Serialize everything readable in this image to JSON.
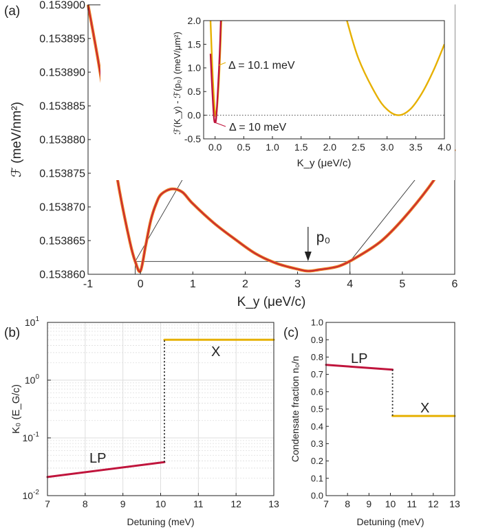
{
  "colors": {
    "lp": "#c0143c",
    "x": "#e6b000",
    "orange": "#e8761e",
    "axis": "#222222",
    "grid": "#dddddd"
  },
  "panel_labels": {
    "a": "(a)",
    "b": "(b)",
    "c": "(c)"
  },
  "chart_data": [
    {
      "id": "a-main",
      "type": "line",
      "xlabel": "K_y (μeV/c)",
      "ylabel": "ℱ (meV/nm²)",
      "xlim": [
        -1,
        6
      ],
      "ylim": [
        0.153858,
        0.1539
      ],
      "xticks": [
        "-1",
        "0",
        "1",
        "2",
        "3",
        "4",
        "5",
        "6"
      ],
      "yticks": [
        "0.153860",
        "0.153865",
        "0.153870",
        "0.153875",
        "0.153880",
        "0.153885",
        "0.153890",
        "0.153895",
        "0.153900"
      ],
      "annotation": "p₀",
      "annotation_x": 3.2,
      "box": {
        "x": [
          -0.1,
          4.0
        ],
        "y": [
          0.1538585,
          0.15386
        ]
      },
      "series": [
        {
          "x": [
            -1,
            -0.8,
            -0.6,
            -0.4,
            -0.2,
            -0.1,
            0,
            0.1,
            0.2,
            0.3,
            0.4,
            0.6,
            0.8,
            1.0,
            1.4,
            1.8,
            2.2,
            2.6,
            3.0,
            3.2,
            3.4,
            3.8,
            4.2,
            4.6,
            5.0,
            5.5,
            6.0
          ],
          "y": [
            0.1539,
            0.153891,
            0.153881,
            0.153871,
            0.153863,
            0.15386,
            0.1538585,
            0.1538625,
            0.1538665,
            0.153869,
            0.1538705,
            0.1538713,
            0.1538708,
            0.153869,
            0.153866,
            0.1538635,
            0.1538612,
            0.1538597,
            0.1538588,
            0.1538585,
            0.1538587,
            0.1538593,
            0.153861,
            0.1538632,
            0.1538665,
            0.1538715,
            0.1538775
          ]
        }
      ]
    },
    {
      "id": "a-inset",
      "type": "line",
      "xlabel": "K_y (μeV/c)",
      "ylabel": "ℱ(K_y) - ℱ(p₀) (meV/μm²)",
      "xlim": [
        -0.2,
        4.0
      ],
      "ylim": [
        -0.5,
        2.0
      ],
      "xticks": [
        "0.0",
        "0.5",
        "1.0",
        "1.5",
        "2.0",
        "2.5",
        "3.0",
        "3.5",
        "4.0"
      ],
      "yticks": [
        "-0.5",
        "0.0",
        "0.5",
        "1.0",
        "1.5",
        "2.0"
      ],
      "reference_line": 0,
      "series": [
        {
          "name": "Δ = 10.1 meV",
          "color_key": "x",
          "x": [
            -0.08,
            -0.05,
            -0.02,
            0,
            0.02,
            0.05,
            0.08,
            0.11,
            2.3,
            2.5,
            2.8,
            3.0,
            3.2,
            3.4,
            3.6,
            3.8,
            4.0
          ],
          "y": [
            2.0,
            1.05,
            0.35,
            0.05,
            0.0,
            0.4,
            1.05,
            2.0,
            2.0,
            1.2,
            0.45,
            0.12,
            0.0,
            0.12,
            0.45,
            0.92,
            1.5
          ]
        },
        {
          "name": "Δ = 10 meV",
          "color_key": "lp",
          "x": [
            -0.08,
            -0.05,
            -0.02,
            0,
            0.02,
            0.05,
            0.08,
            0.1
          ],
          "y": [
            1.3,
            0.55,
            -0.05,
            -0.15,
            -0.05,
            0.55,
            1.3,
            2.0
          ]
        }
      ],
      "labels": [
        "Δ = 10.1 meV",
        "Δ = 10 meV"
      ]
    },
    {
      "id": "b",
      "type": "line",
      "xlabel": "Detuning (meV)",
      "ylabel": "K₀ (E_G/c)",
      "xlim": [
        7,
        13
      ],
      "ylim": [
        0.01,
        10
      ],
      "scale_y": "log",
      "grid": true,
      "xticks": [
        "7",
        "8",
        "9",
        "10",
        "11",
        "12",
        "13"
      ],
      "yticks": [
        {
          "base": "10",
          "exp": "-2"
        },
        {
          "base": "10",
          "exp": "-1"
        },
        {
          "base": "10",
          "exp": "0"
        },
        {
          "base": "10",
          "exp": "1"
        }
      ],
      "series": [
        {
          "name": "LP",
          "color_key": "lp",
          "x": [
            7,
            10.1
          ],
          "y": [
            0.021,
            0.038
          ]
        },
        {
          "name": "X",
          "color_key": "x",
          "x": [
            10.1,
            13
          ],
          "y": [
            5.0,
            5.0
          ]
        }
      ],
      "transition_x": 10.1,
      "labels": [
        "LP",
        "X"
      ]
    },
    {
      "id": "c",
      "type": "line",
      "xlabel": "Detuning (meV)",
      "ylabel": "Condensate fraction n₀/n",
      "xlim": [
        7,
        13
      ],
      "ylim": [
        0,
        1
      ],
      "xticks": [
        "7",
        "8",
        "9",
        "10",
        "11",
        "12",
        "13"
      ],
      "yticks": [
        "0.0",
        "0.1",
        "0.2",
        "0.3",
        "0.4",
        "0.5",
        "0.6",
        "0.7",
        "0.8",
        "0.9",
        "1.0"
      ],
      "series": [
        {
          "name": "LP",
          "color_key": "lp",
          "x": [
            7,
            10.1
          ],
          "y": [
            0.755,
            0.727
          ]
        },
        {
          "name": "X",
          "color_key": "x",
          "x": [
            10.1,
            13
          ],
          "y": [
            0.46,
            0.46
          ]
        }
      ],
      "transition_x": 10.1,
      "labels": [
        "LP",
        "X"
      ]
    }
  ]
}
